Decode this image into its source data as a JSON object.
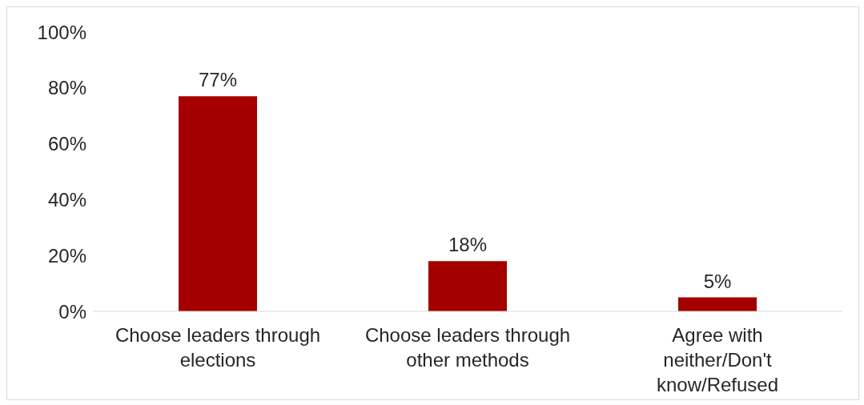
{
  "chart_data": {
    "type": "bar",
    "categories": [
      "Choose leaders through elections",
      "Choose leaders through other methods",
      "Agree with neither/Don't know/Refused"
    ],
    "values": [
      77,
      18,
      5
    ],
    "value_labels": [
      "77%",
      "18%",
      "5%"
    ],
    "color": "#a50000",
    "ylim": [
      0,
      100
    ],
    "yticks": [
      {
        "value": 0,
        "label": "0%"
      },
      {
        "value": 20,
        "label": "20%"
      },
      {
        "value": 40,
        "label": "40%"
      },
      {
        "value": 60,
        "label": "60%"
      },
      {
        "value": 80,
        "label": "80%"
      },
      {
        "value": 100,
        "label": "100%"
      }
    ]
  }
}
